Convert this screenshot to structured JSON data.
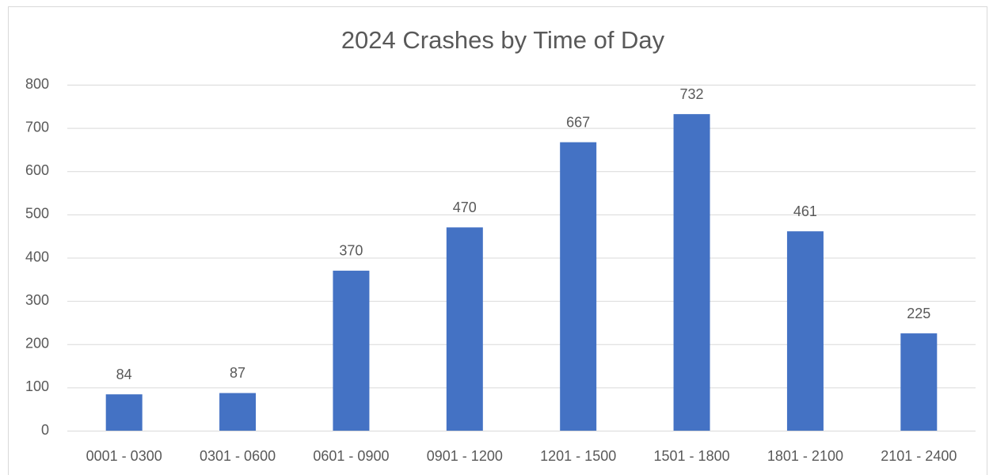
{
  "chart_data": {
    "type": "bar",
    "title": "2024 Crashes by Time of Day",
    "categories": [
      "0001 - 0300",
      "0301 - 0600",
      "0601 - 0900",
      "0901 - 1200",
      "1201 - 1500",
      "1501 - 1800",
      "1801 - 2100",
      "2101 - 2400"
    ],
    "values": [
      84,
      87,
      370,
      470,
      667,
      732,
      461,
      225
    ],
    "color": "#4472c4",
    "ylim": [
      0,
      800
    ],
    "yticks": [
      0,
      100,
      200,
      300,
      400,
      500,
      600,
      700,
      800
    ],
    "grid": true,
    "data_labels": true
  }
}
